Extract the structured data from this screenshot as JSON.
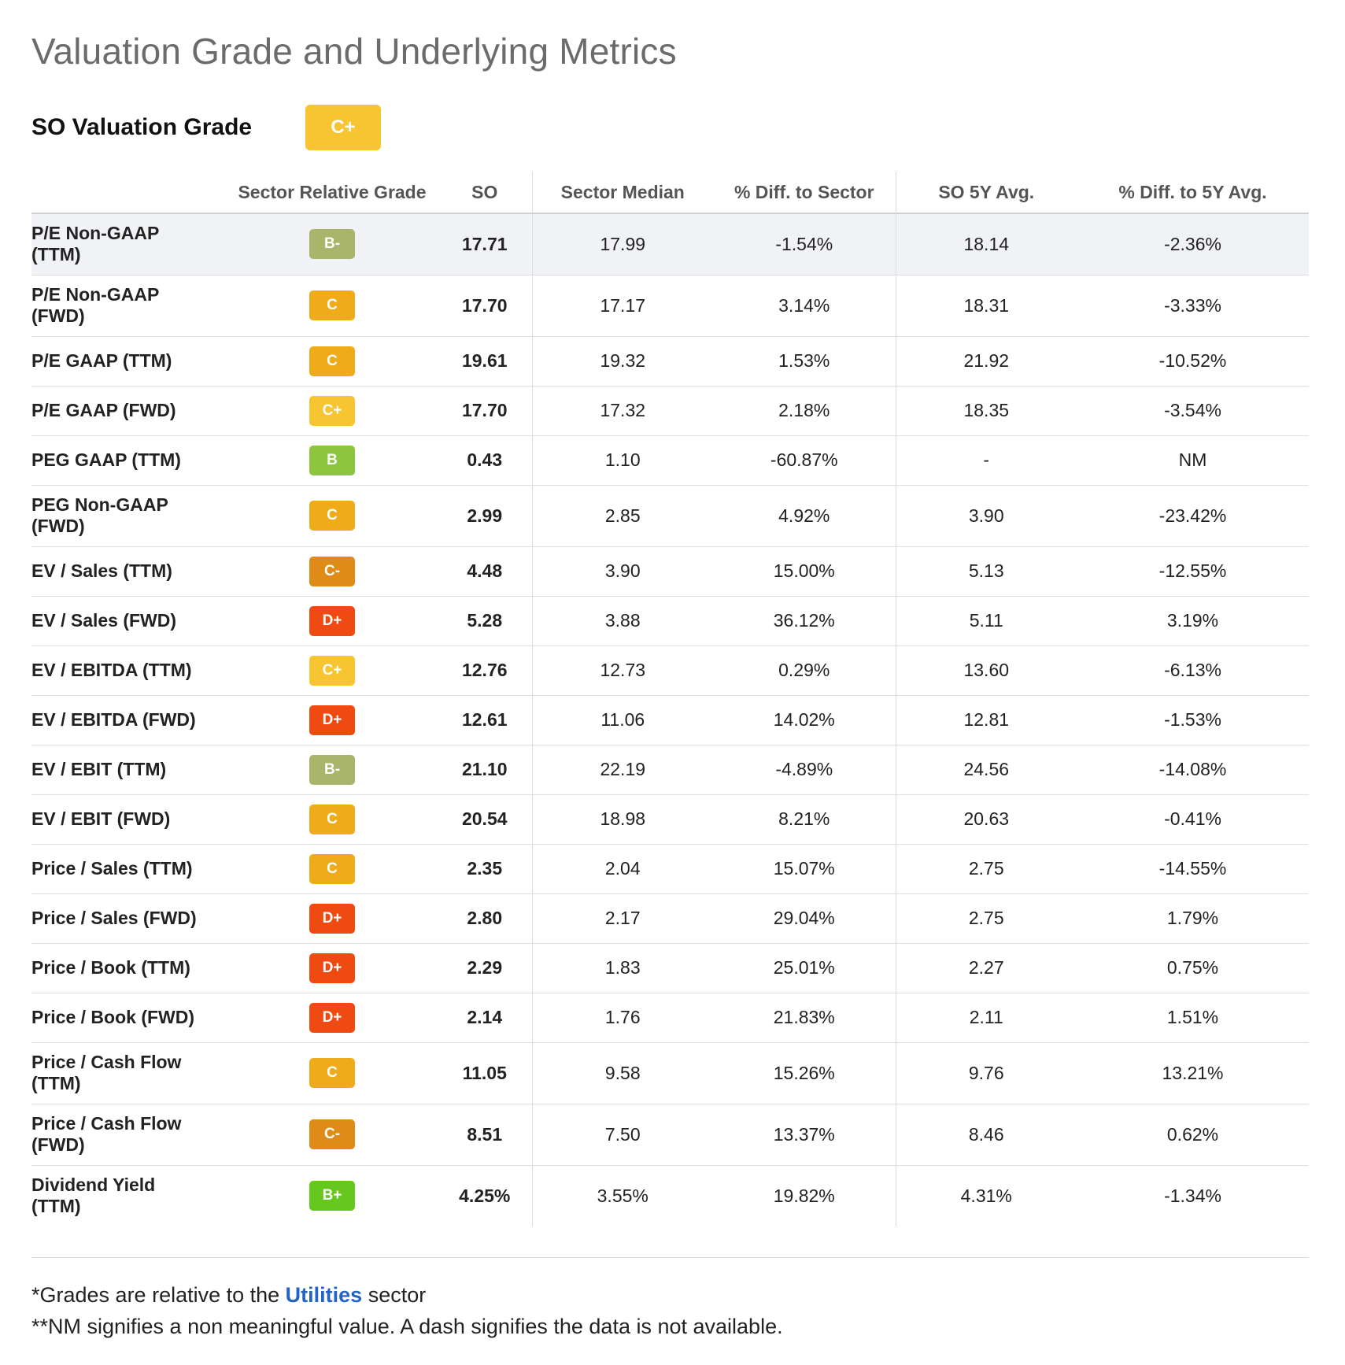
{
  "title": "Valuation Grade and Underlying Metrics",
  "grade_label": "SO Valuation Grade",
  "overall_grade": "C+",
  "colors": {
    "A+": "#3fa81a",
    "B+": "#66c81e",
    "B": "#8cc63e",
    "B-": "#a9b56b",
    "C+": "#f7c531",
    "C": "#efab1a",
    "C-": "#df8b17",
    "D+": "#ef4a12"
  },
  "headers": [
    "",
    "Sector Relative Grade",
    "SO",
    "Sector Median",
    "% Diff. to Sector",
    "SO 5Y Avg.",
    "% Diff. to 5Y Avg."
  ],
  "rows": [
    {
      "metric": [
        "P/E Non-GAAP",
        "(TTM)"
      ],
      "grade": "B-",
      "so": "17.71",
      "median": "17.99",
      "diff_sector": "-1.54%",
      "avg5y": "18.14",
      "diff_5y": "-2.36%",
      "tall": true,
      "highlight": true
    },
    {
      "metric": [
        "P/E Non-GAAP",
        "(FWD)"
      ],
      "grade": "C",
      "so": "17.70",
      "median": "17.17",
      "diff_sector": "3.14%",
      "avg5y": "18.31",
      "diff_5y": "-3.33%",
      "tall": true
    },
    {
      "metric": [
        "P/E GAAP (TTM)"
      ],
      "grade": "C",
      "so": "19.61",
      "median": "19.32",
      "diff_sector": "1.53%",
      "avg5y": "21.92",
      "diff_5y": "-10.52%"
    },
    {
      "metric": [
        "P/E GAAP (FWD)"
      ],
      "grade": "C+",
      "so": "17.70",
      "median": "17.32",
      "diff_sector": "2.18%",
      "avg5y": "18.35",
      "diff_5y": "-3.54%"
    },
    {
      "metric": [
        "PEG GAAP (TTM)"
      ],
      "grade": "B",
      "so": "0.43",
      "median": "1.10",
      "diff_sector": "-60.87%",
      "avg5y": "-",
      "diff_5y": "NM"
    },
    {
      "metric": [
        "PEG Non-GAAP",
        "(FWD)"
      ],
      "grade": "C",
      "so": "2.99",
      "median": "2.85",
      "diff_sector": "4.92%",
      "avg5y": "3.90",
      "diff_5y": "-23.42%",
      "tall": true
    },
    {
      "metric": [
        "EV / Sales (TTM)"
      ],
      "grade": "C-",
      "so": "4.48",
      "median": "3.90",
      "diff_sector": "15.00%",
      "avg5y": "5.13",
      "diff_5y": "-12.55%"
    },
    {
      "metric": [
        "EV / Sales (FWD)"
      ],
      "grade": "D+",
      "so": "5.28",
      "median": "3.88",
      "diff_sector": "36.12%",
      "avg5y": "5.11",
      "diff_5y": "3.19%"
    },
    {
      "metric": [
        "EV / EBITDA (TTM)"
      ],
      "grade": "C+",
      "so": "12.76",
      "median": "12.73",
      "diff_sector": "0.29%",
      "avg5y": "13.60",
      "diff_5y": "-6.13%"
    },
    {
      "metric": [
        "EV / EBITDA (FWD)"
      ],
      "grade": "D+",
      "so": "12.61",
      "median": "11.06",
      "diff_sector": "14.02%",
      "avg5y": "12.81",
      "diff_5y": "-1.53%"
    },
    {
      "metric": [
        "EV / EBIT (TTM)"
      ],
      "grade": "B-",
      "so": "21.10",
      "median": "22.19",
      "diff_sector": "-4.89%",
      "avg5y": "24.56",
      "diff_5y": "-14.08%"
    },
    {
      "metric": [
        "EV / EBIT (FWD)"
      ],
      "grade": "C",
      "so": "20.54",
      "median": "18.98",
      "diff_sector": "8.21%",
      "avg5y": "20.63",
      "diff_5y": "-0.41%"
    },
    {
      "metric": [
        "Price / Sales (TTM)"
      ],
      "grade": "C",
      "so": "2.35",
      "median": "2.04",
      "diff_sector": "15.07%",
      "avg5y": "2.75",
      "diff_5y": "-14.55%"
    },
    {
      "metric": [
        "Price / Sales (FWD)"
      ],
      "grade": "D+",
      "so": "2.80",
      "median": "2.17",
      "diff_sector": "29.04%",
      "avg5y": "2.75",
      "diff_5y": "1.79%"
    },
    {
      "metric": [
        "Price / Book (TTM)"
      ],
      "grade": "D+",
      "so": "2.29",
      "median": "1.83",
      "diff_sector": "25.01%",
      "avg5y": "2.27",
      "diff_5y": "0.75%"
    },
    {
      "metric": [
        "Price / Book (FWD)"
      ],
      "grade": "D+",
      "so": "2.14",
      "median": "1.76",
      "diff_sector": "21.83%",
      "avg5y": "2.11",
      "diff_5y": "1.51%"
    },
    {
      "metric": [
        "Price / Cash Flow",
        "(TTM)"
      ],
      "grade": "C",
      "so": "11.05",
      "median": "9.58",
      "diff_sector": "15.26%",
      "avg5y": "9.76",
      "diff_5y": "13.21%",
      "tall": true
    },
    {
      "metric": [
        "Price / Cash Flow",
        "(FWD)"
      ],
      "grade": "C-",
      "so": "8.51",
      "median": "7.50",
      "diff_sector": "13.37%",
      "avg5y": "8.46",
      "diff_5y": "0.62%",
      "tall": true
    },
    {
      "metric": [
        "Dividend Yield",
        "(TTM)"
      ],
      "grade": "B+",
      "so": "4.25%",
      "median": "3.55%",
      "diff_sector": "19.82%",
      "avg5y": "4.31%",
      "diff_5y": "-1.34%",
      "tall": true,
      "noborder": true
    }
  ],
  "footer": {
    "note1_prefix": "*Grades are relative to the ",
    "note1_link": "Utilities",
    "note1_suffix": " sector",
    "note2": "**NM signifies a non meaningful value. A dash signifies the data is not available."
  }
}
